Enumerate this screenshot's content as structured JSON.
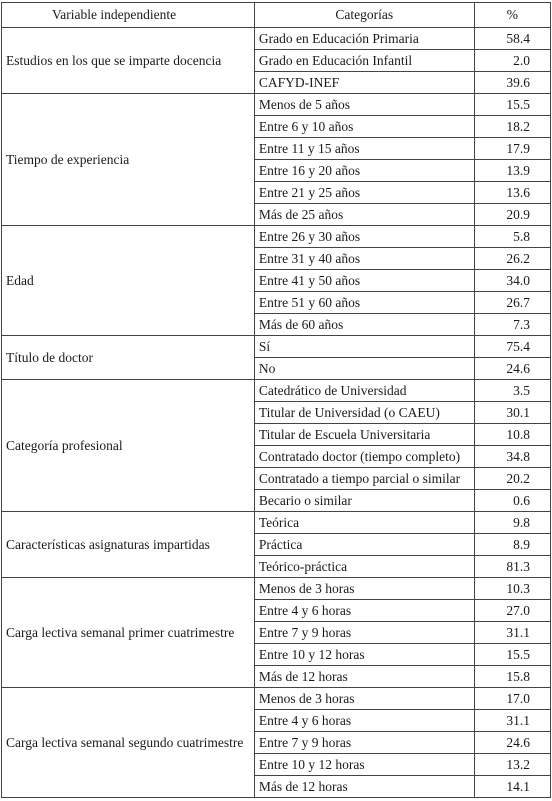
{
  "header": {
    "variable": "Variable independiente",
    "category": "Categorías",
    "percent": "%"
  },
  "groups": [
    {
      "variable": "Estudios en los que se imparte docencia",
      "rows": [
        {
          "category": "Grado en Educación Primaria",
          "percent": "58.4"
        },
        {
          "category": "Grado en Educación Infantil",
          "percent": "2.0"
        },
        {
          "category": "CAFYD-INEF",
          "percent": "39.6"
        }
      ]
    },
    {
      "variable": "Tiempo de experiencia",
      "rows": [
        {
          "category": "Menos de 5 años",
          "percent": "15.5"
        },
        {
          "category": "Entre 6 y 10 años",
          "percent": "18.2"
        },
        {
          "category": "Entre 11 y 15 años",
          "percent": "17.9"
        },
        {
          "category": "Entre 16 y 20 años",
          "percent": "13.9"
        },
        {
          "category": "Entre 21 y 25 años",
          "percent": "13.6"
        },
        {
          "category": "Más de 25 años",
          "percent": "20.9"
        }
      ]
    },
    {
      "variable": "Edad",
      "rows": [
        {
          "category": "Entre 26 y 30 años",
          "percent": "5.8"
        },
        {
          "category": "Entre 31 y 40 años",
          "percent": "26.2"
        },
        {
          "category": "Entre 41 y 50 años",
          "percent": "34.0"
        },
        {
          "category": "Entre 51 y 60 años",
          "percent": "26.7"
        },
        {
          "category": "Más de 60 años",
          "percent": "7.3"
        }
      ]
    },
    {
      "variable": "Título de doctor",
      "rows": [
        {
          "category": "Sí",
          "percent": "75.4"
        },
        {
          "category": "No",
          "percent": "24.6"
        }
      ]
    },
    {
      "variable": "Categoría profesional",
      "rows": [
        {
          "category": "Catedrático de Universidad",
          "percent": "3.5"
        },
        {
          "category": "Titular de Universidad (o CAEU)",
          "percent": "30.1"
        },
        {
          "category": "Titular de Escuela Universitaria",
          "percent": "10.8"
        },
        {
          "category": "Contratado doctor (tiempo completo)",
          "percent": "34.8"
        },
        {
          "category": "Contratado a tiempo parcial o similar",
          "percent": "20.2"
        },
        {
          "category": "Becario o similar",
          "percent": "0.6"
        }
      ]
    },
    {
      "variable": "Características asignaturas impartidas",
      "rows": [
        {
          "category": "Teórica",
          "percent": "9.8"
        },
        {
          "category": "Práctica",
          "percent": "8.9"
        },
        {
          "category": "Teórico-práctica",
          "percent": "81.3"
        }
      ]
    },
    {
      "variable": "Carga lectiva semanal primer cuatrimestre",
      "rows": [
        {
          "category": "Menos de 3 horas",
          "percent": "10.3"
        },
        {
          "category": "Entre 4 y 6 horas",
          "percent": "27.0"
        },
        {
          "category": "Entre 7 y 9 horas",
          "percent": "31.1"
        },
        {
          "category": "Entre 10 y 12 horas",
          "percent": "15.5"
        },
        {
          "category": "Más de 12 horas",
          "percent": "15.8"
        }
      ]
    },
    {
      "variable": "Carga lectiva semanal segundo cuatrimestre",
      "rows": [
        {
          "category": "Menos de 3 horas",
          "percent": "17.0"
        },
        {
          "category": "Entre 4 y 6 horas",
          "percent": "31.1"
        },
        {
          "category": "Entre 7 y 9 horas",
          "percent": "24.6"
        },
        {
          "category": "Entre 10 y 12 horas",
          "percent": "13.2"
        },
        {
          "category": "Más de 12 horas",
          "percent": "14.1"
        }
      ]
    }
  ]
}
